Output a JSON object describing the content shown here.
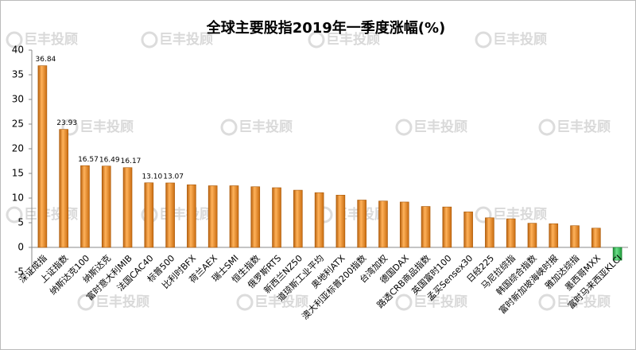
{
  "chart_data": {
    "type": "bar",
    "title": "全球主要股指2019年一季度涨幅(%)",
    "watermark": "巨丰投顾",
    "categories": [
      "深证成指",
      "上证指数",
      "纳斯达克100",
      "纳斯达克",
      "富时意大利MIB",
      "法国CAC40",
      "标普500",
      "比利时BFX",
      "荷兰AEX",
      "瑞士SMI",
      "恒生指数",
      "俄罗斯RTS",
      "新西兰NZ50",
      "道琼斯工业平均",
      "奥地利ATX",
      "澳大利亚标普200指数",
      "台湾加权",
      "德国DAX",
      "路透CRB商品指数",
      "英国富时100",
      "孟买Sensex30",
      "日经225",
      "马尼拉综指",
      "韩国综合指数",
      "富时新加坡海峡时报",
      "雅加达综指",
      "墨西哥MXX",
      "富时马来西亚KLCI"
    ],
    "values": [
      36.84,
      23.93,
      16.57,
      16.49,
      16.17,
      13.1,
      13.07,
      12.7,
      12.5,
      12.5,
      12.3,
      12.1,
      11.6,
      11.1,
      10.6,
      9.6,
      9.4,
      9.2,
      8.3,
      8.2,
      7.2,
      6.0,
      5.8,
      4.9,
      4.8,
      4.4,
      3.9,
      -2.6
    ],
    "value_labels": [
      "36.84",
      "23.93",
      "16.57",
      "16.49",
      "16.17",
      "13.10",
      "13.07",
      null,
      null,
      null,
      null,
      null,
      null,
      null,
      null,
      null,
      null,
      null,
      null,
      null,
      null,
      null,
      null,
      null,
      null,
      null,
      null,
      null
    ],
    "color": "#e8891e",
    "negative_color": "#2fb24c",
    "ylim": [
      -5,
      40
    ],
    "yticks": [
      -5,
      0,
      5,
      10,
      15,
      20,
      25,
      30,
      35,
      40
    ]
  }
}
